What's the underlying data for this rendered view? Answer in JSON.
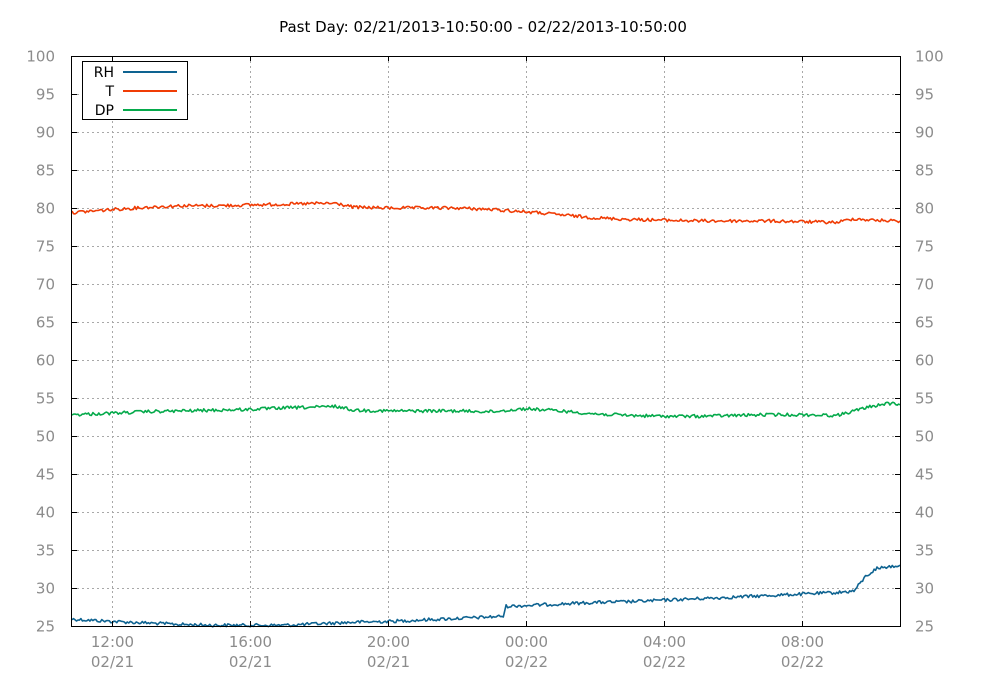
{
  "chart_data": {
    "type": "line",
    "title": "Past Day: 02/21/2013-10:50:00 - 02/22/2013-10:50:00",
    "xlabel": "",
    "ylabel": "",
    "y_ticks": [
      "100",
      "95",
      "90",
      "85",
      "80",
      "75",
      "70",
      "65",
      "60",
      "55",
      "50",
      "45",
      "40",
      "35",
      "30",
      "25"
    ],
    "ylim": [
      25,
      100
    ],
    "xlim": [
      "02/21/2013 10:50",
      "02/22/2013 10:50"
    ],
    "x_ticks": [
      {
        "time": "12:00",
        "date": "02/21",
        "at": "02/21/2013 12:00"
      },
      {
        "time": "16:00",
        "date": "02/21",
        "at": "02/21/2013 16:00"
      },
      {
        "time": "20:00",
        "date": "02/21",
        "at": "02/21/2013 20:00"
      },
      {
        "time": "00:00",
        "date": "02/22",
        "at": "02/22/2013 00:00"
      },
      {
        "time": "04:00",
        "date": "02/22",
        "at": "02/22/2013 04:00"
      },
      {
        "time": "08:00",
        "date": "02/22",
        "at": "02/22/2013 08:00"
      }
    ],
    "grid": true,
    "legend_position": "top-left",
    "series": [
      {
        "name": "RH",
        "color": "#0e6391",
        "points": [
          [
            "02/21/2013 10:50",
            25.9
          ],
          [
            "02/21/2013 12:00",
            25.6
          ],
          [
            "02/21/2013 13:00",
            25.4
          ],
          [
            "02/21/2013 14:00",
            25.2
          ],
          [
            "02/21/2013 15:00",
            25.1
          ],
          [
            "02/21/2013 16:00",
            25.1
          ],
          [
            "02/21/2013 17:00",
            25.1
          ],
          [
            "02/21/2013 18:00",
            25.3
          ],
          [
            "02/21/2013 19:00",
            25.5
          ],
          [
            "02/21/2013 20:00",
            25.6
          ],
          [
            "02/21/2013 21:00",
            25.8
          ],
          [
            "02/21/2013 22:00",
            26.0
          ],
          [
            "02/21/2013 23:00",
            26.2
          ],
          [
            "02/21/2013 23:20",
            26.3
          ],
          [
            "02/21/2013 23:25",
            27.6
          ],
          [
            "02/22/2013 00:00",
            27.7
          ],
          [
            "02/22/2013 01:00",
            27.9
          ],
          [
            "02/22/2013 02:00",
            28.1
          ],
          [
            "02/22/2013 03:00",
            28.2
          ],
          [
            "02/22/2013 04:00",
            28.4
          ],
          [
            "02/22/2013 05:00",
            28.6
          ],
          [
            "02/22/2013 06:00",
            28.8
          ],
          [
            "02/22/2013 07:00",
            29.0
          ],
          [
            "02/22/2013 08:00",
            29.2
          ],
          [
            "02/22/2013 09:00",
            29.4
          ],
          [
            "02/22/2013 09:30",
            29.6
          ],
          [
            "02/22/2013 09:50",
            31.5
          ],
          [
            "02/22/2013 10:10",
            32.6
          ],
          [
            "02/22/2013 10:50",
            33.0
          ]
        ]
      },
      {
        "name": "T",
        "color": "#f03c05",
        "points": [
          [
            "02/21/2013 10:50",
            79.4
          ],
          [
            "02/21/2013 12:00",
            79.8
          ],
          [
            "02/21/2013 13:00",
            80.1
          ],
          [
            "02/21/2013 14:00",
            80.3
          ],
          [
            "02/21/2013 15:00",
            80.3
          ],
          [
            "02/21/2013 16:00",
            80.4
          ],
          [
            "02/21/2013 17:00",
            80.5
          ],
          [
            "02/21/2013 18:00",
            80.6
          ],
          [
            "02/21/2013 18:30",
            80.6
          ],
          [
            "02/21/2013 19:00",
            80.1
          ],
          [
            "02/21/2013 20:00",
            80.0
          ],
          [
            "02/21/2013 21:00",
            80.0
          ],
          [
            "02/21/2013 22:00",
            80.0
          ],
          [
            "02/21/2013 23:00",
            79.8
          ],
          [
            "02/22/2013 00:00",
            79.5
          ],
          [
            "02/22/2013 01:00",
            79.1
          ],
          [
            "02/22/2013 02:00",
            78.7
          ],
          [
            "02/22/2013 03:00",
            78.5
          ],
          [
            "02/22/2013 04:00",
            78.4
          ],
          [
            "02/22/2013 05:00",
            78.3
          ],
          [
            "02/22/2013 06:00",
            78.3
          ],
          [
            "02/22/2013 07:00",
            78.3
          ],
          [
            "02/22/2013 08:00",
            78.2
          ],
          [
            "02/22/2013 09:00",
            78.1
          ],
          [
            "02/22/2013 09:30",
            78.6
          ],
          [
            "02/22/2013 10:00",
            78.4
          ],
          [
            "02/22/2013 10:50",
            78.3
          ]
        ]
      },
      {
        "name": "DP",
        "color": "#05aa4b",
        "points": [
          [
            "02/21/2013 10:50",
            52.8
          ],
          [
            "02/21/2013 12:00",
            53.0
          ],
          [
            "02/21/2013 13:00",
            53.2
          ],
          [
            "02/21/2013 14:00",
            53.3
          ],
          [
            "02/21/2013 15:00",
            53.4
          ],
          [
            "02/21/2013 16:00",
            53.5
          ],
          [
            "02/21/2013 17:00",
            53.7
          ],
          [
            "02/21/2013 18:00",
            53.8
          ],
          [
            "02/21/2013 18:30",
            53.9
          ],
          [
            "02/21/2013 19:00",
            53.4
          ],
          [
            "02/21/2013 20:00",
            53.3
          ],
          [
            "02/21/2013 21:00",
            53.3
          ],
          [
            "02/21/2013 22:00",
            53.3
          ],
          [
            "02/21/2013 23:00",
            53.2
          ],
          [
            "02/22/2013 00:00",
            53.6
          ],
          [
            "02/22/2013 01:00",
            53.3
          ],
          [
            "02/22/2013 02:00",
            52.9
          ],
          [
            "02/22/2013 03:00",
            52.7
          ],
          [
            "02/22/2013 04:00",
            52.6
          ],
          [
            "02/22/2013 05:00",
            52.6
          ],
          [
            "02/22/2013 06:00",
            52.7
          ],
          [
            "02/22/2013 07:00",
            52.8
          ],
          [
            "02/22/2013 08:00",
            52.8
          ],
          [
            "02/22/2013 09:00",
            52.7
          ],
          [
            "02/22/2013 09:30",
            53.3
          ],
          [
            "02/22/2013 10:00",
            53.9
          ],
          [
            "02/22/2013 10:30",
            54.3
          ],
          [
            "02/22/2013 10:50",
            54.1
          ]
        ]
      }
    ]
  }
}
